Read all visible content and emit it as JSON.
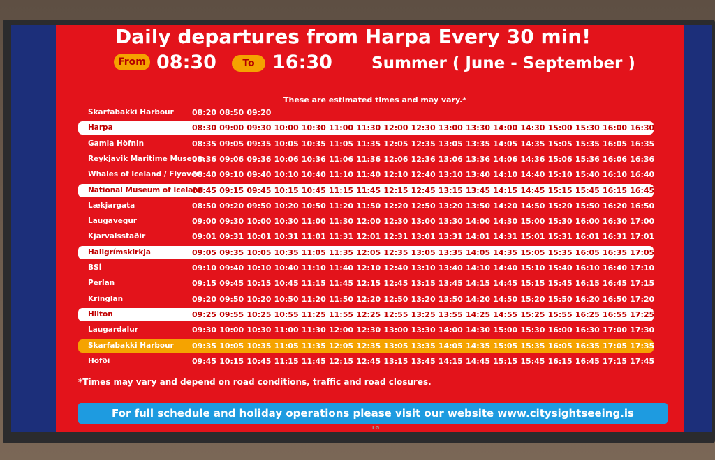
{
  "header": {
    "title": "Daily departures from Harpa Every 30 min!",
    "from_label": "From",
    "from_time": "08:30",
    "to_label": "To",
    "to_time": "16:30",
    "season": "Summer ( June - September )"
  },
  "table": {
    "note": "These are estimated times and may vary.*",
    "rows": [
      {
        "stop": "Skarfabakki Harbour",
        "times": [
          "08:20",
          "08:50",
          "09:20"
        ]
      },
      {
        "stop": "Harpa",
        "times": [
          "08:30",
          "09:00",
          "09:30",
          "10:00",
          "10:30",
          "11:00",
          "11:30",
          "12:00",
          "12:30",
          "13:00",
          "13:30",
          "14:00",
          "14:30",
          "15:00",
          "15:30",
          "16:00",
          "16:30"
        ]
      },
      {
        "stop": "Gamla Höfnin",
        "times": [
          "08:35",
          "09:05",
          "09:35",
          "10:05",
          "10:35",
          "11:05",
          "11:35",
          "12:05",
          "12:35",
          "13:05",
          "13:35",
          "14:05",
          "14:35",
          "15:05",
          "15:35",
          "16:05",
          "16:35"
        ]
      },
      {
        "stop": "Reykjavik Maritime Museum",
        "times": [
          "08:36",
          "09:06",
          "09:36",
          "10:06",
          "10:36",
          "11:06",
          "11:36",
          "12:06",
          "12:36",
          "13:06",
          "13:36",
          "14:06",
          "14:36",
          "15:06",
          "15:36",
          "16:06",
          "16:36"
        ]
      },
      {
        "stop": "Whales of Iceland / Flyover",
        "times": [
          "08:40",
          "09:10",
          "09:40",
          "10:10",
          "10:40",
          "11:10",
          "11:40",
          "12:10",
          "12:40",
          "13:10",
          "13:40",
          "14:10",
          "14:40",
          "15:10",
          "15:40",
          "16:10",
          "16:40"
        ]
      },
      {
        "stop": "National Museum of Iceland",
        "times": [
          "08:45",
          "09:15",
          "09:45",
          "10:15",
          "10:45",
          "11:15",
          "11:45",
          "12:15",
          "12:45",
          "13:15",
          "13:45",
          "14:15",
          "14:45",
          "15:15",
          "15:45",
          "16:15",
          "16:45"
        ]
      },
      {
        "stop": "Lækjargata",
        "times": [
          "08:50",
          "09:20",
          "09:50",
          "10:20",
          "10:50",
          "11:20",
          "11:50",
          "12:20",
          "12:50",
          "13:20",
          "13:50",
          "14:20",
          "14:50",
          "15:20",
          "15:50",
          "16:20",
          "16:50"
        ]
      },
      {
        "stop": "Laugavegur",
        "times": [
          "09:00",
          "09:30",
          "10:00",
          "10:30",
          "11:00",
          "11:30",
          "12:00",
          "12:30",
          "13:00",
          "13:30",
          "14:00",
          "14:30",
          "15:00",
          "15:30",
          "16:00",
          "16:30",
          "17:00"
        ]
      },
      {
        "stop": "Kjarvalsstaðir",
        "times": [
          "09:01",
          "09:31",
          "10:01",
          "10:31",
          "11:01",
          "11:31",
          "12:01",
          "12:31",
          "13:01",
          "13:31",
          "14:01",
          "14:31",
          "15:01",
          "15:31",
          "16:01",
          "16:31",
          "17:01"
        ]
      },
      {
        "stop": "Hallgrímskirkja",
        "times": [
          "09:05",
          "09:35",
          "10:05",
          "10:35",
          "11:05",
          "11:35",
          "12:05",
          "12:35",
          "13:05",
          "13:35",
          "14:05",
          "14:35",
          "15:05",
          "15:35",
          "16:05",
          "16:35",
          "17:05"
        ]
      },
      {
        "stop": "BSÍ",
        "times": [
          "09:10",
          "09:40",
          "10:10",
          "10:40",
          "11:10",
          "11:40",
          "12:10",
          "12:40",
          "13:10",
          "13:40",
          "14:10",
          "14:40",
          "15:10",
          "15:40",
          "16:10",
          "16:40",
          "17:10"
        ]
      },
      {
        "stop": "Perlan",
        "times": [
          "09:15",
          "09:45",
          "10:15",
          "10:45",
          "11:15",
          "11:45",
          "12:15",
          "12:45",
          "13:15",
          "13:45",
          "14:15",
          "14:45",
          "15:15",
          "15:45",
          "16:15",
          "16:45",
          "17:15"
        ]
      },
      {
        "stop": "Kringlan",
        "times": [
          "09:20",
          "09:50",
          "10:20",
          "10:50",
          "11:20",
          "11:50",
          "12:20",
          "12:50",
          "13:20",
          "13:50",
          "14:20",
          "14:50",
          "15:20",
          "15:50",
          "16:20",
          "16:50",
          "17:20"
        ]
      },
      {
        "stop": "Hilton",
        "times": [
          "09:25",
          "09:55",
          "10:25",
          "10:55",
          "11:25",
          "11:55",
          "12:25",
          "12:55",
          "13:25",
          "13:55",
          "14:25",
          "14:55",
          "15:25",
          "15:55",
          "16:25",
          "16:55",
          "17:25"
        ]
      },
      {
        "stop": "Laugardalur",
        "times": [
          "09:30",
          "10:00",
          "10:30",
          "11:00",
          "11:30",
          "12:00",
          "12:30",
          "13:00",
          "13:30",
          "14:00",
          "14:30",
          "15:00",
          "15:30",
          "16:00",
          "16:30",
          "17:00",
          "17:30"
        ]
      },
      {
        "stop": "Skarfabakki Harbour",
        "times": [
          "09:35",
          "10:05",
          "10:35",
          "11:05",
          "11:35",
          "12:05",
          "12:35",
          "13:05",
          "13:35",
          "14:05",
          "14:35",
          "15:05",
          "15:35",
          "16:05",
          "16:35",
          "17:05",
          "17:35"
        ]
      },
      {
        "stop": "Höfði",
        "times": [
          "09:45",
          "10:15",
          "10:45",
          "11:15",
          "11:45",
          "12:15",
          "12:45",
          "13:15",
          "13:45",
          "14:15",
          "14:45",
          "15:15",
          "15:45",
          "16:15",
          "16:45",
          "17:15",
          "17:45"
        ]
      }
    ]
  },
  "footer": {
    "note": "*Times may vary and depend on road conditions, traffic and road closures.",
    "banner": "For full schedule and holiday operations please visit our website www.citysightseeing.is",
    "brand": "LG"
  }
}
